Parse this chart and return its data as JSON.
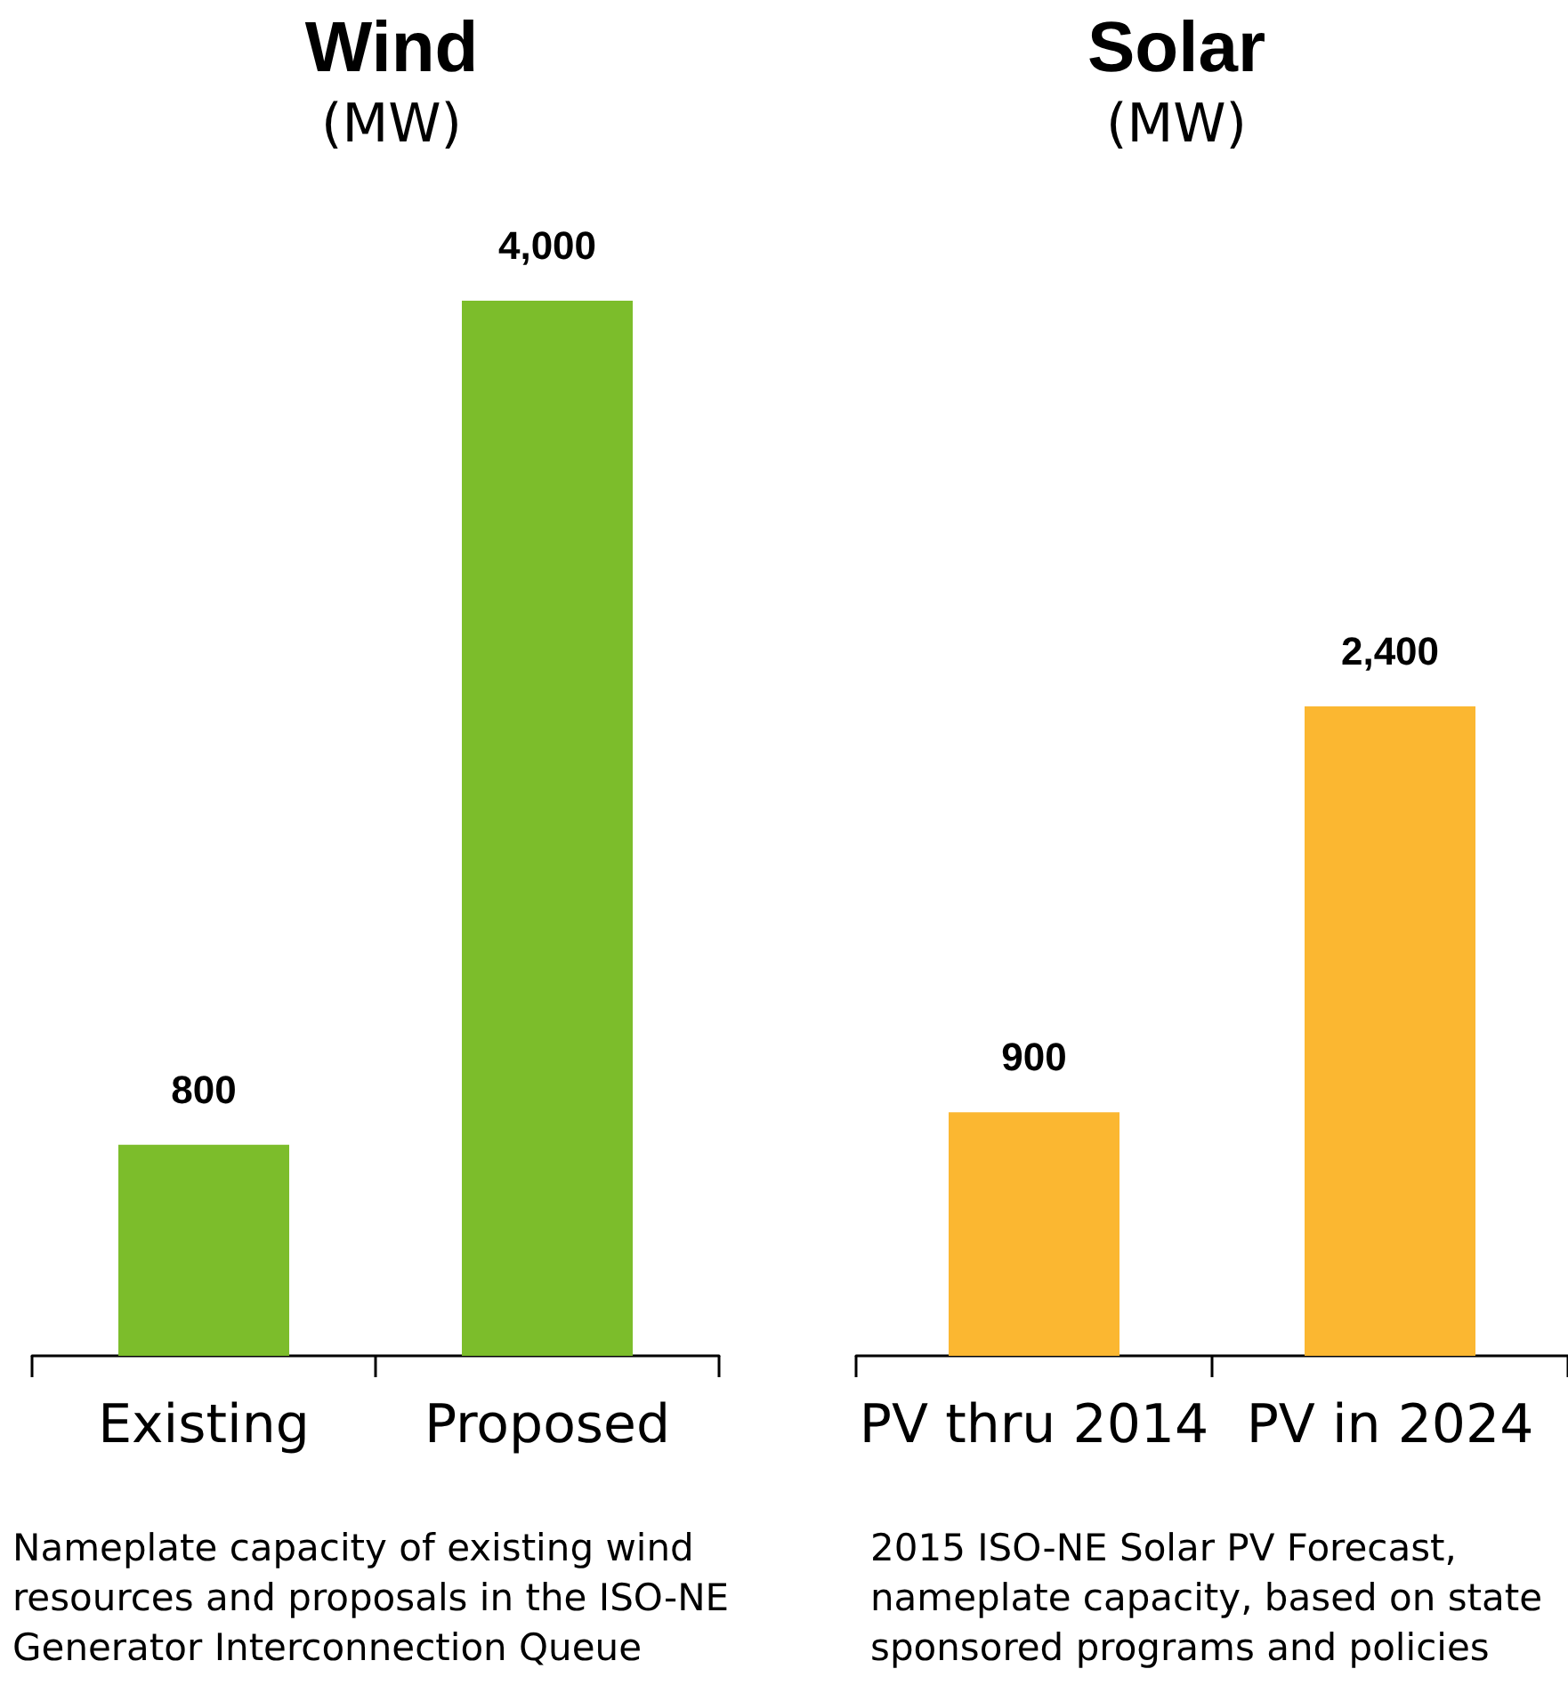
{
  "chart_data": [
    {
      "type": "bar",
      "title": "Wind",
      "subtitle": "(MW)",
      "categories": [
        "Existing",
        "Proposed"
      ],
      "values": [
        800,
        4000
      ],
      "value_labels": [
        "800",
        "4,000"
      ],
      "color": "#7cbd2b",
      "annotations": [
        "Nameplate capacity of existing wind resources and proposals in the ISO-NE Generator Interconnection Queue"
      ]
    },
    {
      "type": "bar",
      "title": "Solar",
      "subtitle": "(MW)",
      "categories": [
        "PV thru 2014",
        "PV in 2024"
      ],
      "values": [
        900,
        2400
      ],
      "value_labels": [
        "900",
        "2,400"
      ],
      "color": "#fbb731",
      "annotations": [
        "2015 ISO-NE Solar PV Forecast, nameplate capacity, based on state sponsored programs and  policies"
      ]
    }
  ]
}
